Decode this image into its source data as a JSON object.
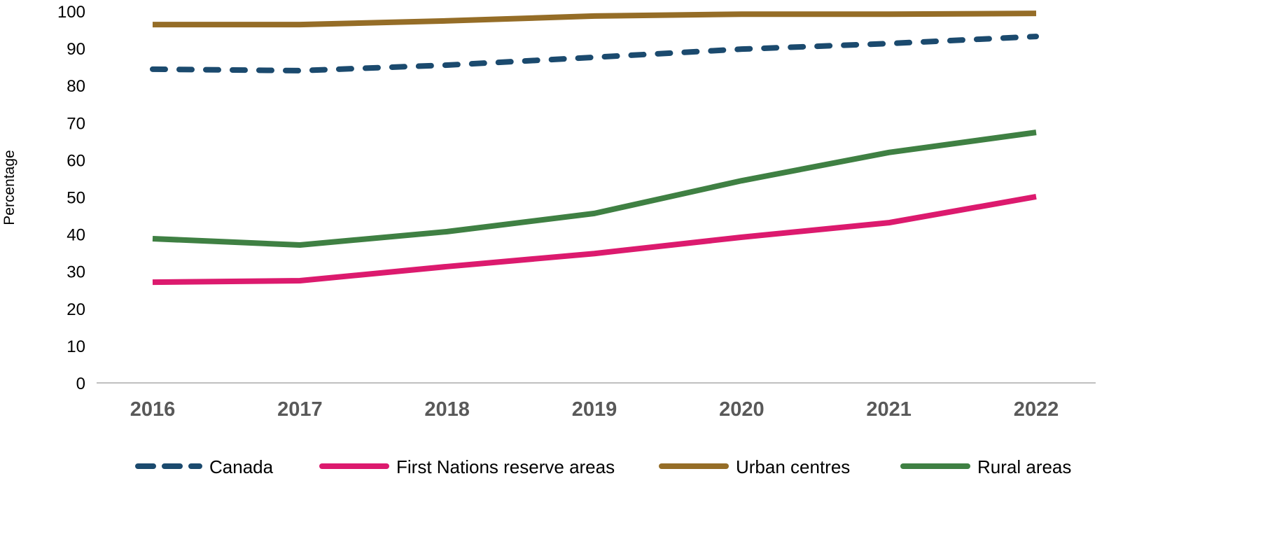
{
  "chart_data": {
    "type": "line",
    "title": "",
    "xlabel": "",
    "ylabel": "Percentage",
    "ylim": [
      0,
      100
    ],
    "yticks": [
      0,
      10,
      20,
      30,
      40,
      50,
      60,
      70,
      80,
      90,
      100
    ],
    "categories": [
      "2016",
      "2017",
      "2018",
      "2019",
      "2020",
      "2021",
      "2022"
    ],
    "grid": false,
    "legend_position": "bottom",
    "series": [
      {
        "name": "Canada",
        "color": "#1b4a6e",
        "dashed": true,
        "values": [
          84.4,
          84.0,
          85.5,
          87.6,
          89.8,
          91.3,
          93.2
        ]
      },
      {
        "name": "First Nations reserve areas",
        "color": "#dc1a6e",
        "dashed": false,
        "values": [
          27.1,
          27.5,
          31.3,
          34.8,
          39.2,
          43.1,
          50.1
        ]
      },
      {
        "name": "Urban centres",
        "color": "#956d27",
        "dashed": false,
        "values": [
          96.4,
          96.4,
          97.4,
          98.7,
          99.2,
          99.2,
          99.4
        ]
      },
      {
        "name": "Rural areas",
        "color": "#3f8043",
        "dashed": false,
        "values": [
          38.8,
          37.1,
          40.7,
          45.6,
          54.4,
          62.0,
          67.4
        ]
      }
    ]
  }
}
